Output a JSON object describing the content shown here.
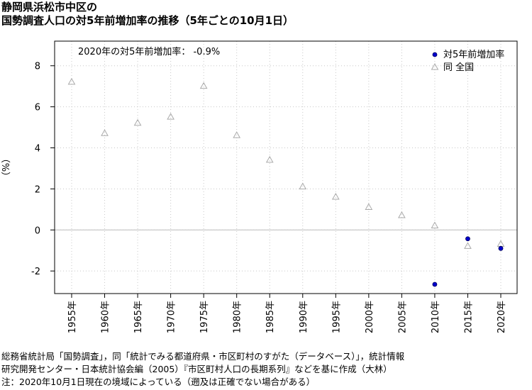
{
  "title": {
    "line1": "静岡県浜松市中区の",
    "line2": "国勢調査人口の対5年前増加率の推移（5年ごとの10月1日）"
  },
  "annotation": "2020年の対5年前増加率： -0.9%",
  "ylabel": "（%）",
  "legend": {
    "placement": "top-right",
    "items": [
      {
        "label": "対5年前増加率",
        "color": "#0000cc",
        "marker": "filled-circle"
      },
      {
        "label": "同 全国",
        "color": "#aaaaaa",
        "marker": "open-triangle"
      }
    ]
  },
  "notes": [
    "総務省統計局「国勢調査」，同「統計でみる都道府県・市区町村のすがた（データベース）」，統計情報",
    "研究開発センター・日本統計協会編（2005）『市区町村人口の長期系列』などを基に作成（大林）",
    "注：2020年10月1日現在の境域によっている（遡及は正確でない場合がある）"
  ],
  "chart_data": {
    "type": "scatter",
    "categories": [
      "1955年",
      "1960年",
      "1965年",
      "1970年",
      "1975年",
      "1980年",
      "1985年",
      "1990年",
      "1995年",
      "2000年",
      "2005年",
      "2010年",
      "2015年",
      "2020年"
    ],
    "ylim": [
      -3.1,
      9.2
    ],
    "yticks": [
      -2,
      0,
      2,
      4,
      6,
      8
    ],
    "yticklabels": [
      "-2",
      "0",
      "2",
      "4",
      "6",
      "8"
    ],
    "grid": true,
    "series": [
      {
        "name": "対5年前増加率",
        "values": [
          null,
          null,
          null,
          null,
          null,
          null,
          null,
          null,
          null,
          null,
          null,
          -2.65,
          -0.43,
          -0.9
        ]
      },
      {
        "name": "同 全国",
        "values": [
          7.2,
          4.7,
          5.2,
          5.5,
          7.0,
          4.6,
          3.4,
          2.1,
          1.6,
          1.1,
          0.7,
          0.2,
          -0.8,
          -0.7
        ]
      }
    ]
  }
}
